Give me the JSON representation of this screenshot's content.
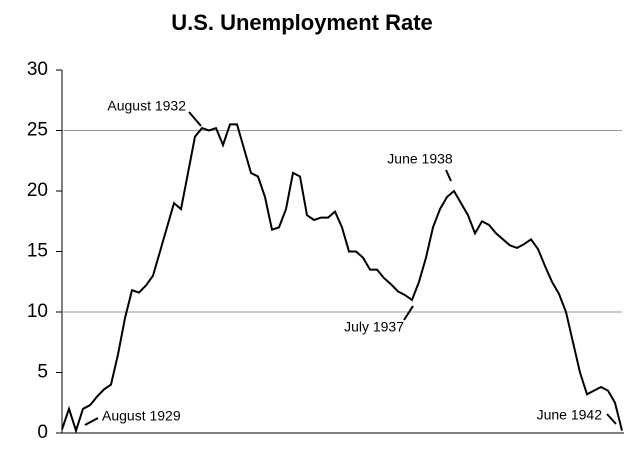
{
  "chart_data": {
    "type": "line",
    "title": "U.S. Unemployment Rate",
    "categories": [
      null,
      null,
      null,
      null,
      null,
      null,
      null,
      null,
      null,
      null,
      null,
      null,
      null,
      null,
      null,
      null,
      null,
      null,
      null,
      null,
      null,
      null,
      null,
      null,
      null,
      null,
      null,
      null,
      null,
      null,
      null,
      null,
      null,
      null,
      null,
      null,
      null,
      null,
      null,
      null,
      null,
      null,
      null,
      null,
      null,
      null,
      null,
      null,
      null,
      null,
      null,
      null,
      null,
      null,
      null,
      null,
      null,
      null,
      null,
      null,
      null,
      null,
      null,
      null,
      null,
      null,
      null,
      null,
      null,
      null,
      null,
      null,
      null,
      null,
      null,
      null,
      null,
      null,
      null,
      null,
      null
    ],
    "values": [
      0.3,
      2.0,
      0.2,
      2.0,
      2.3,
      3.0,
      3.6,
      4.0,
      6.5,
      9.5,
      11.8,
      11.6,
      12.2,
      13.0,
      15.0,
      17.0,
      19.0,
      18.5,
      21.5,
      24.5,
      25.2,
      25.0,
      25.2,
      23.8,
      25.5,
      25.5,
      23.5,
      21.5,
      21.2,
      19.5,
      16.8,
      17.0,
      18.5,
      21.5,
      21.2,
      18.0,
      17.6,
      17.8,
      17.8,
      18.3,
      17.0,
      15.0,
      15.0,
      14.5,
      13.5,
      13.5,
      12.8,
      12.3,
      11.7,
      11.4,
      11.0,
      12.5,
      14.5,
      17.0,
      18.5,
      19.5,
      20.0,
      19.0,
      18.0,
      16.5,
      17.5,
      17.2,
      16.5,
      16.0,
      15.5,
      15.3,
      15.6,
      16.0,
      15.2,
      13.8,
      12.5,
      11.5,
      10.0,
      7.5,
      5.0,
      3.2,
      3.5,
      3.8,
      3.5,
      2.5,
      0.2
    ],
    "color": "#000000",
    "ylim": [
      0,
      30
    ],
    "yticks": [
      0,
      5,
      10,
      15,
      20,
      25,
      30
    ],
    "hlines": [
      10,
      25
    ],
    "annotations": [
      "August 1929",
      "August 1932",
      "July 1937",
      "June 1938",
      "June 1942"
    ]
  }
}
